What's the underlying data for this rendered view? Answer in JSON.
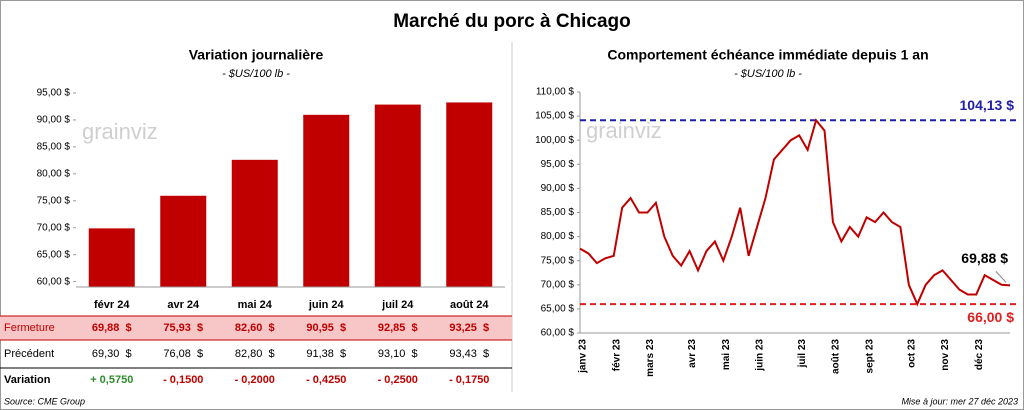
{
  "title": "Marché du porc à Chicago",
  "chart_data": [
    {
      "type": "bar",
      "title": "Variation journalière",
      "subtitle": "- $US/100 lb -",
      "watermark": "grainviz",
      "categories": [
        "févr 24",
        "avr 24",
        "mai 24",
        "juin 24",
        "juil 24",
        "août 24"
      ],
      "values": [
        69.88,
        75.93,
        82.6,
        90.95,
        92.85,
        93.25
      ],
      "color": "#c00000",
      "ylim": [
        59,
        95
      ],
      "yticks": [
        {
          "value": 60,
          "label": "60,00 $"
        },
        {
          "value": 65,
          "label": "65,00 $"
        },
        {
          "value": 70,
          "label": "70,00 $"
        },
        {
          "value": 75,
          "label": "75,00 $"
        },
        {
          "value": 80,
          "label": "80,00 $"
        },
        {
          "value": 85,
          "label": "85,00 $"
        },
        {
          "value": 90,
          "label": "90,00 $"
        },
        {
          "value": 95,
          "label": "95,00 $"
        }
      ],
      "grid": false
    },
    {
      "type": "line",
      "title": "Comportement échéance immédiate depuis 1 an",
      "subtitle": "- $US/100 lb -",
      "watermark": "grainviz",
      "categories": [
        "janv 23",
        null,
        null,
        null,
        "févr 23",
        null,
        null,
        null,
        "mars 23",
        null,
        null,
        null,
        null,
        "avr 23",
        null,
        null,
        null,
        "mai 23",
        null,
        null,
        null,
        "juin 23",
        null,
        null,
        null,
        null,
        "juil 23",
        null,
        null,
        null,
        "août 23",
        null,
        null,
        null,
        "sept 23",
        null,
        null,
        null,
        null,
        "oct 23",
        null,
        null,
        null,
        "nov 23",
        null,
        null,
        null,
        "déc 23",
        null,
        null,
        null,
        null
      ],
      "series": [
        {
          "name": "Échéance immédiate",
          "color": "#c00000",
          "values": [
            77.5,
            76.5,
            74.5,
            75.5,
            76,
            86,
            88,
            85,
            85,
            87,
            80,
            76,
            74,
            77,
            73,
            77,
            79,
            75,
            80,
            86,
            76,
            82,
            88,
            96,
            98,
            100,
            101,
            98,
            104.13,
            102,
            83,
            79,
            82,
            80,
            84,
            83,
            85,
            83,
            82,
            70,
            66,
            70,
            72,
            73,
            71,
            69,
            68,
            68,
            72,
            71,
            70,
            69.88
          ]
        }
      ],
      "ylim": [
        60,
        110
      ],
      "yticks": [
        {
          "value": 60,
          "label": "60,00 $"
        },
        {
          "value": 65,
          "label": "65,00 $"
        },
        {
          "value": 70,
          "label": "70,00 $"
        },
        {
          "value": 75,
          "label": "75,00 $"
        },
        {
          "value": 80,
          "label": "80,00 $"
        },
        {
          "value": 85,
          "label": "85,00 $"
        },
        {
          "value": 90,
          "label": "90,00 $"
        },
        {
          "value": 95,
          "label": "95,00 $"
        },
        {
          "value": 100,
          "label": "100,00 $"
        },
        {
          "value": 105,
          "label": "105,00 $"
        },
        {
          "value": 110,
          "label": "110,00 $"
        }
      ],
      "hlines": [
        {
          "value": 104.13,
          "label": "104,13 $",
          "color": "#1f1fa8"
        },
        {
          "value": 66,
          "label": "66,00 $",
          "color": "#e02020"
        }
      ],
      "last_label": {
        "value": 69.88,
        "label": "69,88 $"
      },
      "grid": false
    }
  ],
  "table": {
    "rows": [
      {
        "label": "Fermeture",
        "cells": [
          "69,88  $",
          "75,93  $",
          "82,60  $",
          "90,95  $",
          "92,85  $",
          "93,25  $"
        ]
      },
      {
        "label": "Précédent",
        "cells": [
          "69,30  $",
          "76,08  $",
          "82,80  $",
          "91,38  $",
          "93,10  $",
          "93,43  $"
        ]
      },
      {
        "label": "Variation",
        "cells": [
          "+ 0,5750",
          "- 0,1500",
          "- 0,2000",
          "- 0,4250",
          "- 0,2500",
          "- 0,1750"
        ]
      }
    ]
  },
  "source": "Source: CME Group",
  "updated": "Mise à jour: mer 27 déc 2023"
}
